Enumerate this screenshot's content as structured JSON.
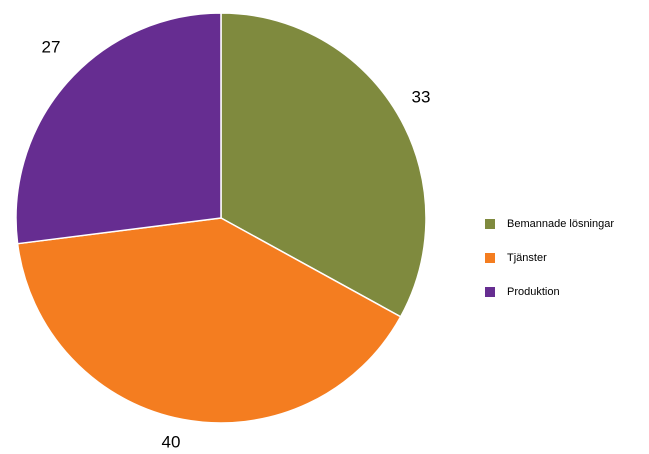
{
  "chart_data": {
    "type": "pie",
    "title": "",
    "categories": [
      "Bemannade lösningar",
      "Tjänster",
      "Produktion"
    ],
    "values": [
      33,
      40,
      27
    ],
    "data_labels": [
      "33",
      "40",
      "27"
    ],
    "colors": [
      "#7f8a3e",
      "#f47d20",
      "#662d91"
    ],
    "start_angle_deg": 0,
    "direction": "clockwise",
    "legend": {
      "position": "right",
      "items": [
        {
          "label": "Bemannade lösningar",
          "color": "#7f8a3e"
        },
        {
          "label": "Tjänster",
          "color": "#f47d20"
        },
        {
          "label": "Produktion",
          "color": "#662d91"
        }
      ]
    }
  }
}
